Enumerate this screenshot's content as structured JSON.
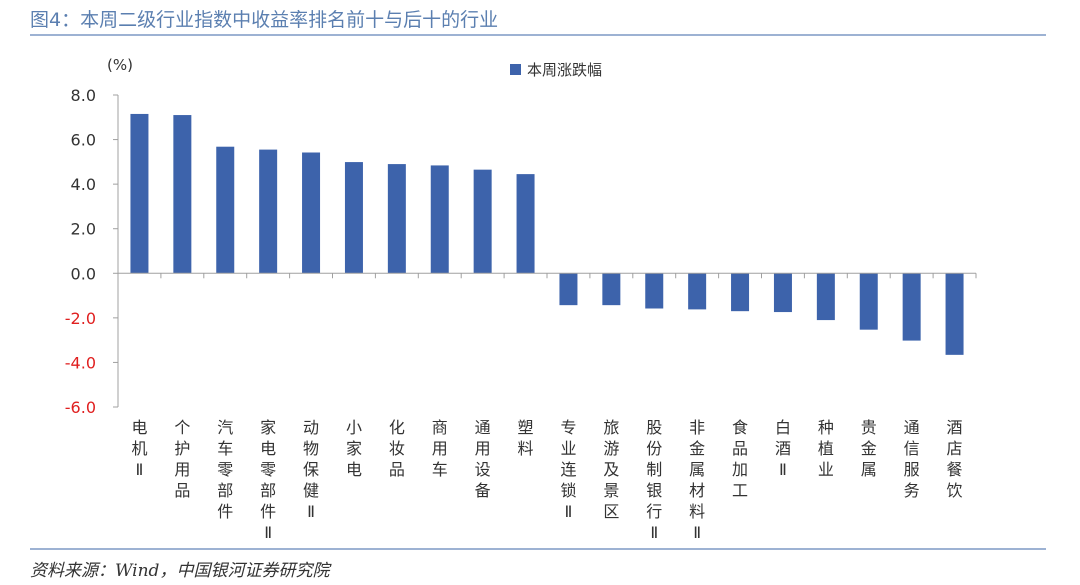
{
  "figure": {
    "title": "图4：本周二级行业指数中收益率排名前十与后十的行业",
    "source": "资料来源：Wind，中国银河证券研究院"
  },
  "chart_data": {
    "type": "bar",
    "unit_label": "(%)",
    "categories": [
      "电机II",
      "个护用品",
      "汽车零部件",
      "家电零部件II",
      "动物保健II",
      "小家电",
      "化妆品",
      "商用车",
      "通用设备",
      "塑料",
      "专业连锁II",
      "旅游及景区",
      "股份制银行II",
      "非金属材料II",
      "食品加工",
      "白酒II",
      "种植业",
      "贵金属",
      "通信服务",
      "酒店餐饮"
    ],
    "series": [
      {
        "name": "本周涨跌幅",
        "values": [
          7.15,
          7.1,
          5.68,
          5.55,
          5.42,
          4.99,
          4.9,
          4.84,
          4.65,
          4.45,
          -1.43,
          -1.43,
          -1.58,
          -1.62,
          -1.7,
          -1.74,
          -2.1,
          -2.53,
          -3.02,
          -3.66
        ]
      }
    ],
    "ylim": [
      -6.0,
      8.0
    ],
    "yticks": [
      "8.0",
      "6.0",
      "4.0",
      "2.0",
      "0.0",
      "-2.0",
      "-4.0",
      "-6.0"
    ],
    "ytick_values": [
      8,
      6,
      4,
      2,
      0,
      -2,
      -4,
      -6
    ],
    "legend_position": "top",
    "grid": false,
    "colors": {
      "bar": "#3d63ab",
      "axis": "#a0a0a0",
      "tick_text": "#333333",
      "negative_tick_text": "#e02020"
    }
  }
}
